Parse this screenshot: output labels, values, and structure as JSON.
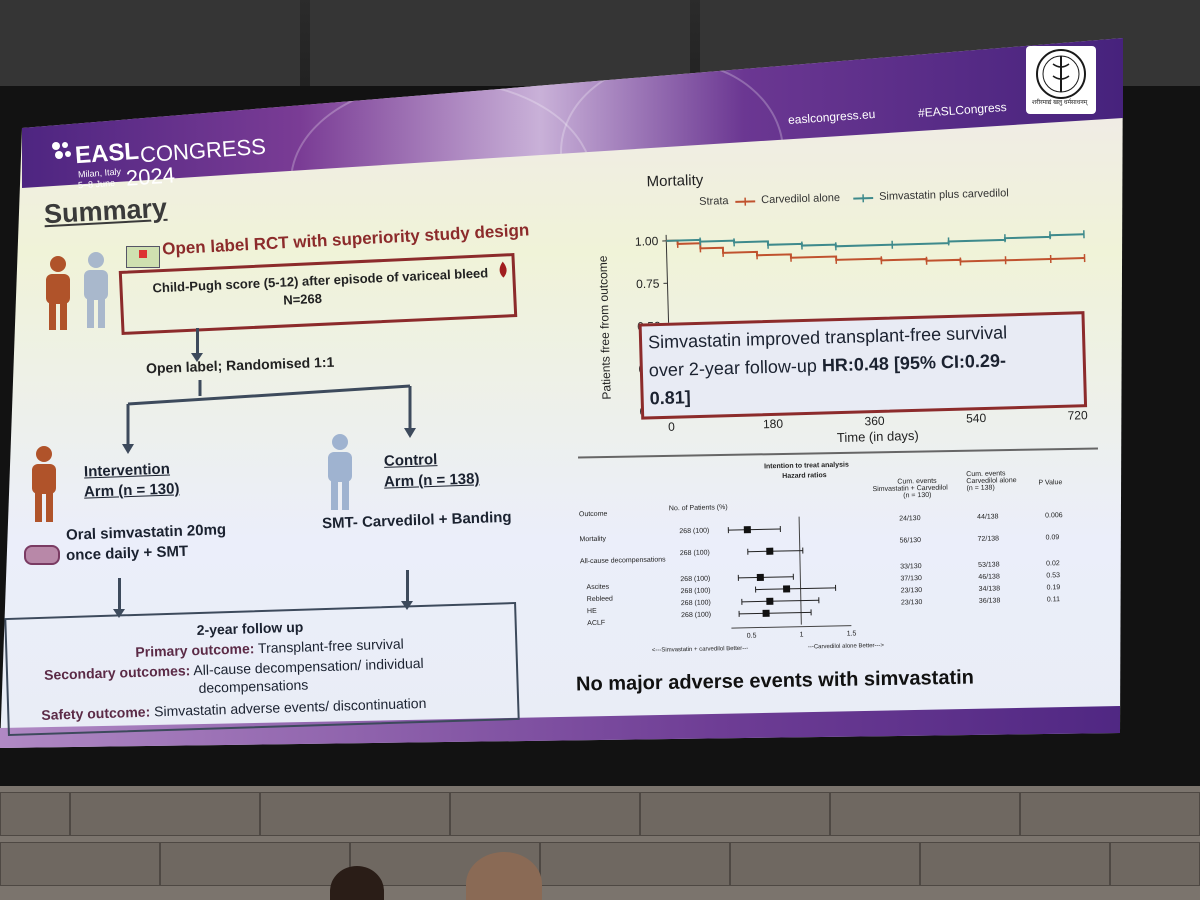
{
  "banner": {
    "org": "EASL",
    "event": "CONGRESS",
    "year": "2024",
    "location": "Milan, Italy",
    "dates": "5–8 June",
    "website": "easlcongress.eu",
    "hashtag": "#EASLCongress"
  },
  "summary": {
    "title": "Summary",
    "design": "Open label RCT with superiority study design",
    "population": "Child-Pugh  score (5-12) after episode of variceal bleed",
    "n": "N=268",
    "randomisation": "Open label; Randomised 1:1",
    "intervention_title_1": "Intervention",
    "intervention_title_2": "Arm (n = 130)",
    "intervention_treatment_1": "Oral simvastatin 20mg",
    "intervention_treatment_2": "once daily + SMT",
    "control_title_1": "Control",
    "control_title_2": "Arm (n = 138)",
    "control_treatment": "SMT- Carvedilol + Banding",
    "followup_title": "2-year follow up",
    "primary_label": "Primary outcome:",
    "primary_value": "Transplant-free survival",
    "secondary_label": "Secondary outcomes:",
    "secondary_value_1": "All-cause decompensation/ individual",
    "secondary_value_2": "decompensations",
    "safety_label": "Safety outcome:",
    "safety_value": "Simvastatin adverse events/ discontinuation"
  },
  "km_plot": {
    "title": "Mortality",
    "strata_label": "Strata",
    "callout_1": "Simvastatin improved transplant-free survival",
    "callout_2a": "over 2-year follow-up ",
    "callout_2b": "HR:0.48 [95% CI:0.29-",
    "callout_3": "0.81]"
  },
  "chart_data": [
    {
      "type": "line",
      "title": "Mortality",
      "xlabel": "Time (in days)",
      "ylabel": "Patients free from outcome",
      "xlim": [
        0,
        730
      ],
      "ylim": [
        0,
        1.0
      ],
      "x_ticks": [
        "0",
        "180",
        "360",
        "540",
        "720"
      ],
      "y_ticks": [
        "0.00",
        "0.25",
        "0.50",
        "0.75",
        "1.00"
      ],
      "legend_title": "Strata",
      "legend_position": "top",
      "series": [
        {
          "name": "Carvedilol alone",
          "color": "#c0522e",
          "x": [
            0,
            20,
            60,
            100,
            160,
            220,
            300,
            380,
            460,
            520,
            600,
            680,
            740
          ],
          "y": [
            1.0,
            0.98,
            0.95,
            0.92,
            0.9,
            0.88,
            0.86,
            0.85,
            0.84,
            0.83,
            0.83,
            0.83,
            0.83
          ]
        },
        {
          "name": "Simvastatin plus carvedilol",
          "color": "#3e8a8c",
          "x": [
            0,
            60,
            120,
            180,
            240,
            300,
            400,
            500,
            600,
            680,
            740
          ],
          "y": [
            1.0,
            0.99,
            0.98,
            0.96,
            0.95,
            0.94,
            0.94,
            0.95,
            0.96,
            0.97,
            0.97
          ]
        }
      ]
    },
    {
      "type": "table",
      "title": "Intention to treat analysis",
      "subtitle": "Hazard ratios",
      "columns": [
        "Outcome",
        "No. of Patients (%)",
        "Cum. events Simvastatin + Carvedilol (n = 130)",
        "Cum. events Carvedilol alone (n = 138)",
        "P Value"
      ],
      "col_header_1a": "Cum. events",
      "col_header_1b": "Simvastatin + Carvedilol",
      "col_header_1c": "(n = 130)",
      "col_header_2a": "Cum. events",
      "col_header_2b": "Carvedilol alone",
      "col_header_2c": "(n = 138)",
      "x_ticks": [
        "0.5",
        "1",
        "1.5"
      ],
      "x_left_note": "<---Simvastatin + carvedilol Better---",
      "x_right_note": "---Carvedilol alone Better--->",
      "rows": [
        {
          "outcome": "Mortality",
          "n": "268 (100)",
          "hr": 0.48,
          "lo": 0.29,
          "hi": 0.81,
          "sim": "24/130",
          "carv": "44/138",
          "p": "0.006"
        },
        {
          "outcome": "All-cause decompensations",
          "n": "268 (100)",
          "hr": 0.7,
          "lo": 0.48,
          "hi": 1.03,
          "sim": "56/130",
          "carv": "72/138",
          "p": "0.09"
        },
        {
          "outcome": "Ascites",
          "n": "268 (100)",
          "hr": 0.6,
          "lo": 0.38,
          "hi": 0.93,
          "sim": "33/130",
          "carv": "53/138",
          "p": "0.02"
        },
        {
          "outcome": "Rebleed",
          "n": "268 (100)",
          "hr": 0.86,
          "lo": 0.55,
          "hi": 1.35,
          "sim": "37/130",
          "carv": "46/138",
          "p": "0.53"
        },
        {
          "outcome": "HE",
          "n": "268 (100)",
          "hr": 0.69,
          "lo": 0.41,
          "hi": 1.18,
          "sim": "23/130",
          "carv": "34/138",
          "p": "0.19"
        },
        {
          "outcome": "ACLF",
          "n": "268 (100)",
          "hr": 0.65,
          "lo": 0.38,
          "hi": 1.1,
          "sim": "23/130",
          "carv": "36/138",
          "p": "0.11"
        }
      ]
    }
  ],
  "bottom_note": "No major adverse events with simvastatin",
  "logo_text": "अखिल भारतीय आयुर्विज्ञान संस्थान",
  "logo_motto": "शरीरमाद्यं खलु धर्मसाधनम्",
  "colors": {
    "accent": "#8c2b2b",
    "banner": "#4a237f",
    "text": "#1b2230"
  }
}
